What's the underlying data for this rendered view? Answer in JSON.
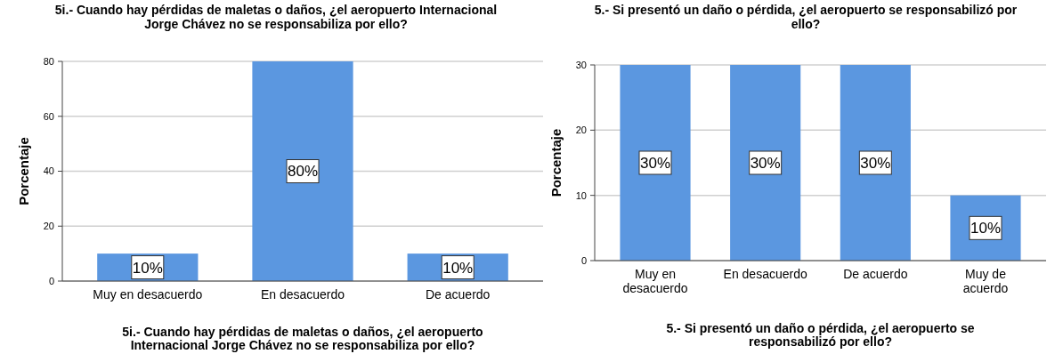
{
  "chart_data": [
    {
      "type": "bar",
      "title": "5i.- Cuando hay pérdidas de maletas o daños, ¿el aeropuerto Internacional Jorge Chávez no se responsabiliza por ello?",
      "xlabel": "5i.- Cuando hay pérdidas de maletas o daños, ¿el aeropuerto Internacional Jorge Chávez no se responsabiliza por ello?",
      "ylabel": "Porcentaje",
      "categories": [
        "Muy en desacuerdo",
        "En desacuerdo",
        "De acuerdo"
      ],
      "values": [
        10,
        80,
        10
      ],
      "value_labels": [
        "10%",
        "80%",
        "10%"
      ],
      "color": "#5b97e0",
      "ylim": [
        0,
        80
      ],
      "yticks": [
        0,
        20,
        40,
        60,
        80
      ],
      "grid": "y"
    },
    {
      "type": "bar",
      "title": "5.- Si presentó un daño o pérdida, ¿el aeropuerto se responsabilizó por ello?",
      "xlabel": "5.- Si presentó un daño o pérdida, ¿el aeropuerto se responsabilizó por ello?",
      "ylabel": "Porcentaje",
      "categories": [
        "Muy en desacuerdo",
        "En desacuerdo",
        "De acuerdo",
        "Muy de acuerdo"
      ],
      "values": [
        30,
        30,
        30,
        10
      ],
      "value_labels": [
        "30%",
        "30%",
        "30%",
        "10%"
      ],
      "color": "#5b97e0",
      "ylim": [
        0,
        30
      ],
      "yticks": [
        0,
        10,
        20,
        30
      ],
      "grid": "y"
    }
  ]
}
